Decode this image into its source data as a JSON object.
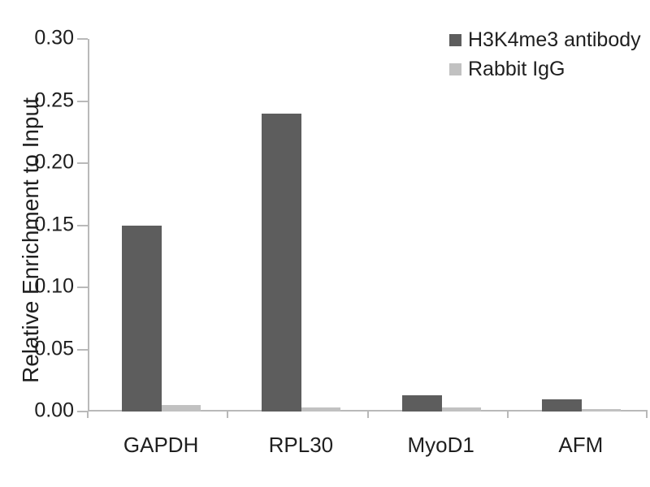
{
  "chart_data": {
    "type": "bar",
    "title": "",
    "xlabel": "",
    "ylabel": "Relative Enrichment to Input",
    "categories": [
      "GAPDH",
      "RPL30",
      "MyoD1",
      "AFM"
    ],
    "series": [
      {
        "name": "H3K4me3 antibody",
        "color": "#5d5d5d",
        "values": [
          0.15,
          0.24,
          0.013,
          0.01
        ]
      },
      {
        "name": "Rabbit IgG",
        "color": "#c1c1c1",
        "values": [
          0.005,
          0.003,
          0.003,
          0.002
        ]
      }
    ],
    "ylim": [
      0,
      0.3
    ],
    "ytick_step": 0.05,
    "yticks": [
      "0.00",
      "0.05",
      "0.10",
      "0.15",
      "0.20",
      "0.25",
      "0.30"
    ],
    "grid": false,
    "legend_position": "top-right",
    "axis_color": "#b9b9b9",
    "text_color": "#1f1f1f",
    "background_color": "#ffffff"
  }
}
